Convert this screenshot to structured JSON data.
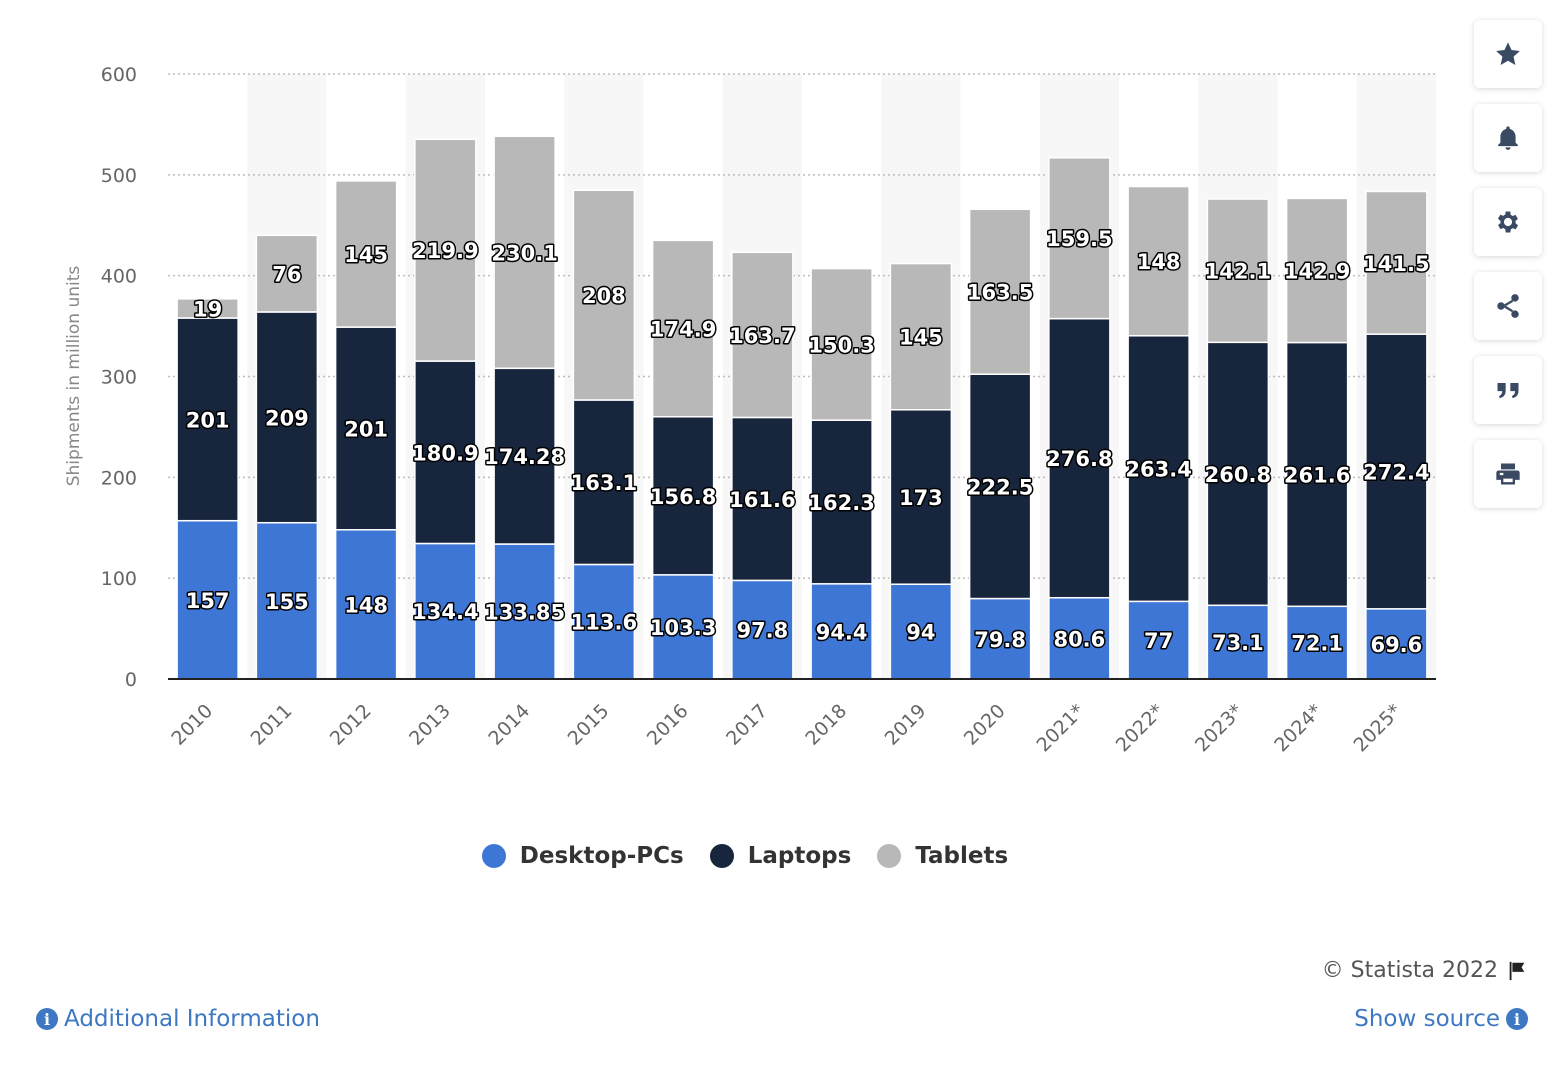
{
  "chart_data": {
    "type": "bar",
    "stacked": true,
    "categories": [
      "2010",
      "2011",
      "2012",
      "2013",
      "2014",
      "2015",
      "2016",
      "2017",
      "2018",
      "2019",
      "2020",
      "2021*",
      "2022*",
      "2023*",
      "2024*",
      "2025*"
    ],
    "series": [
      {
        "name": "Desktop-PCs",
        "color": "#3e76d6",
        "values": [
          157,
          155,
          148,
          134.4,
          133.85,
          113.6,
          103.3,
          97.8,
          94.4,
          94,
          79.8,
          80.6,
          77,
          73.1,
          72.1,
          69.6
        ]
      },
      {
        "name": "Laptops",
        "color": "#17253d",
        "values": [
          201,
          209,
          201,
          180.9,
          174.28,
          163.1,
          156.8,
          161.6,
          162.3,
          173,
          222.5,
          276.8,
          263.4,
          260.8,
          261.6,
          272.4
        ]
      },
      {
        "name": "Tablets",
        "color": "#b8b8b8",
        "values": [
          19,
          76,
          145,
          219.9,
          230.1,
          208,
          174.9,
          163.7,
          150.3,
          145,
          163.5,
          159.5,
          148,
          142.1,
          142.9,
          141.5
        ]
      }
    ],
    "ylabel": "Shipments in million units",
    "xlabel": "",
    "ylim": [
      0,
      600
    ],
    "yticks": [
      0,
      100,
      200,
      300,
      400,
      500,
      600
    ],
    "grid": true,
    "legend_position": "bottom-center"
  },
  "side_tools": [
    {
      "name": "favorite",
      "icon": "star-icon"
    },
    {
      "name": "notification",
      "icon": "bell-icon"
    },
    {
      "name": "settings",
      "icon": "gear-icon"
    },
    {
      "name": "share",
      "icon": "share-icon"
    },
    {
      "name": "cite",
      "icon": "quote-icon"
    },
    {
      "name": "print",
      "icon": "print-icon"
    }
  ],
  "footer": {
    "copyright": "© Statista 2022",
    "additional_info": "Additional Information",
    "show_source": "Show source"
  }
}
